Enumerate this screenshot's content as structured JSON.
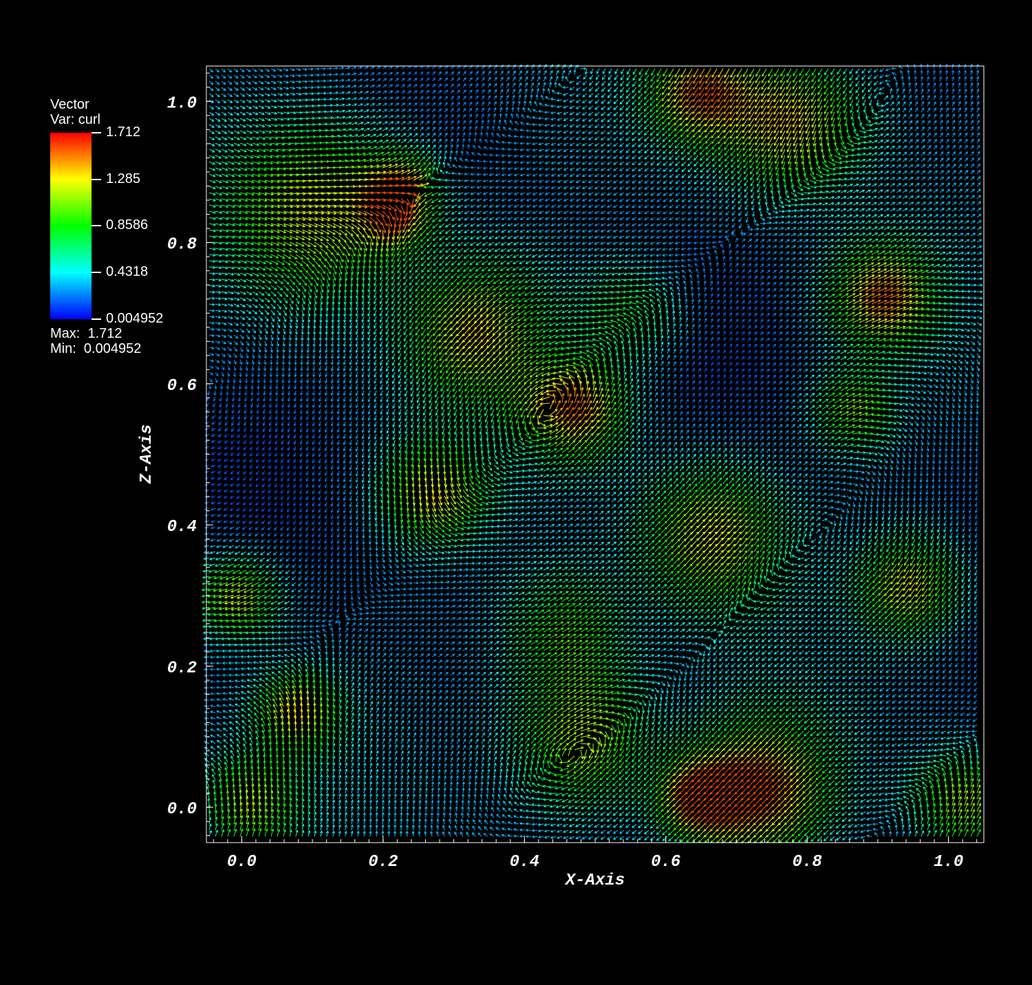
{
  "chart_data": {
    "type": "vector-field",
    "variable_title": "Vector",
    "variable_name": "Var: curl",
    "colorbar": {
      "colors": [
        "#0000ff",
        "#00ffff",
        "#00ff00",
        "#ffff00",
        "#ff0000"
      ],
      "ticks": [
        "1.712",
        "1.285",
        "0.8586",
        "0.4318",
        "0.004952"
      ],
      "tick_values": [
        1.712,
        1.285,
        0.8586,
        0.4318,
        0.004952
      ]
    },
    "max_label": "Max:  1.712",
    "min_label": "Min:  0.004952",
    "max": 1.712,
    "min": 0.004952,
    "xlabel": "X-Axis",
    "ylabel": "Z-Axis",
    "xlim": [
      -0.05,
      1.05
    ],
    "ylim": [
      -0.05,
      1.05
    ],
    "xticks": [
      "0.0",
      "0.2",
      "0.4",
      "0.6",
      "0.8",
      "1.0"
    ],
    "xtick_values": [
      0.0,
      0.2,
      0.4,
      0.6,
      0.8,
      1.0
    ],
    "yticks": [
      "0.0",
      "0.2",
      "0.4",
      "0.6",
      "0.8",
      "1.0"
    ],
    "ytick_values": [
      0.0,
      0.2,
      0.4,
      0.6,
      0.8,
      1.0
    ],
    "background": "#000000",
    "grid": false
  }
}
